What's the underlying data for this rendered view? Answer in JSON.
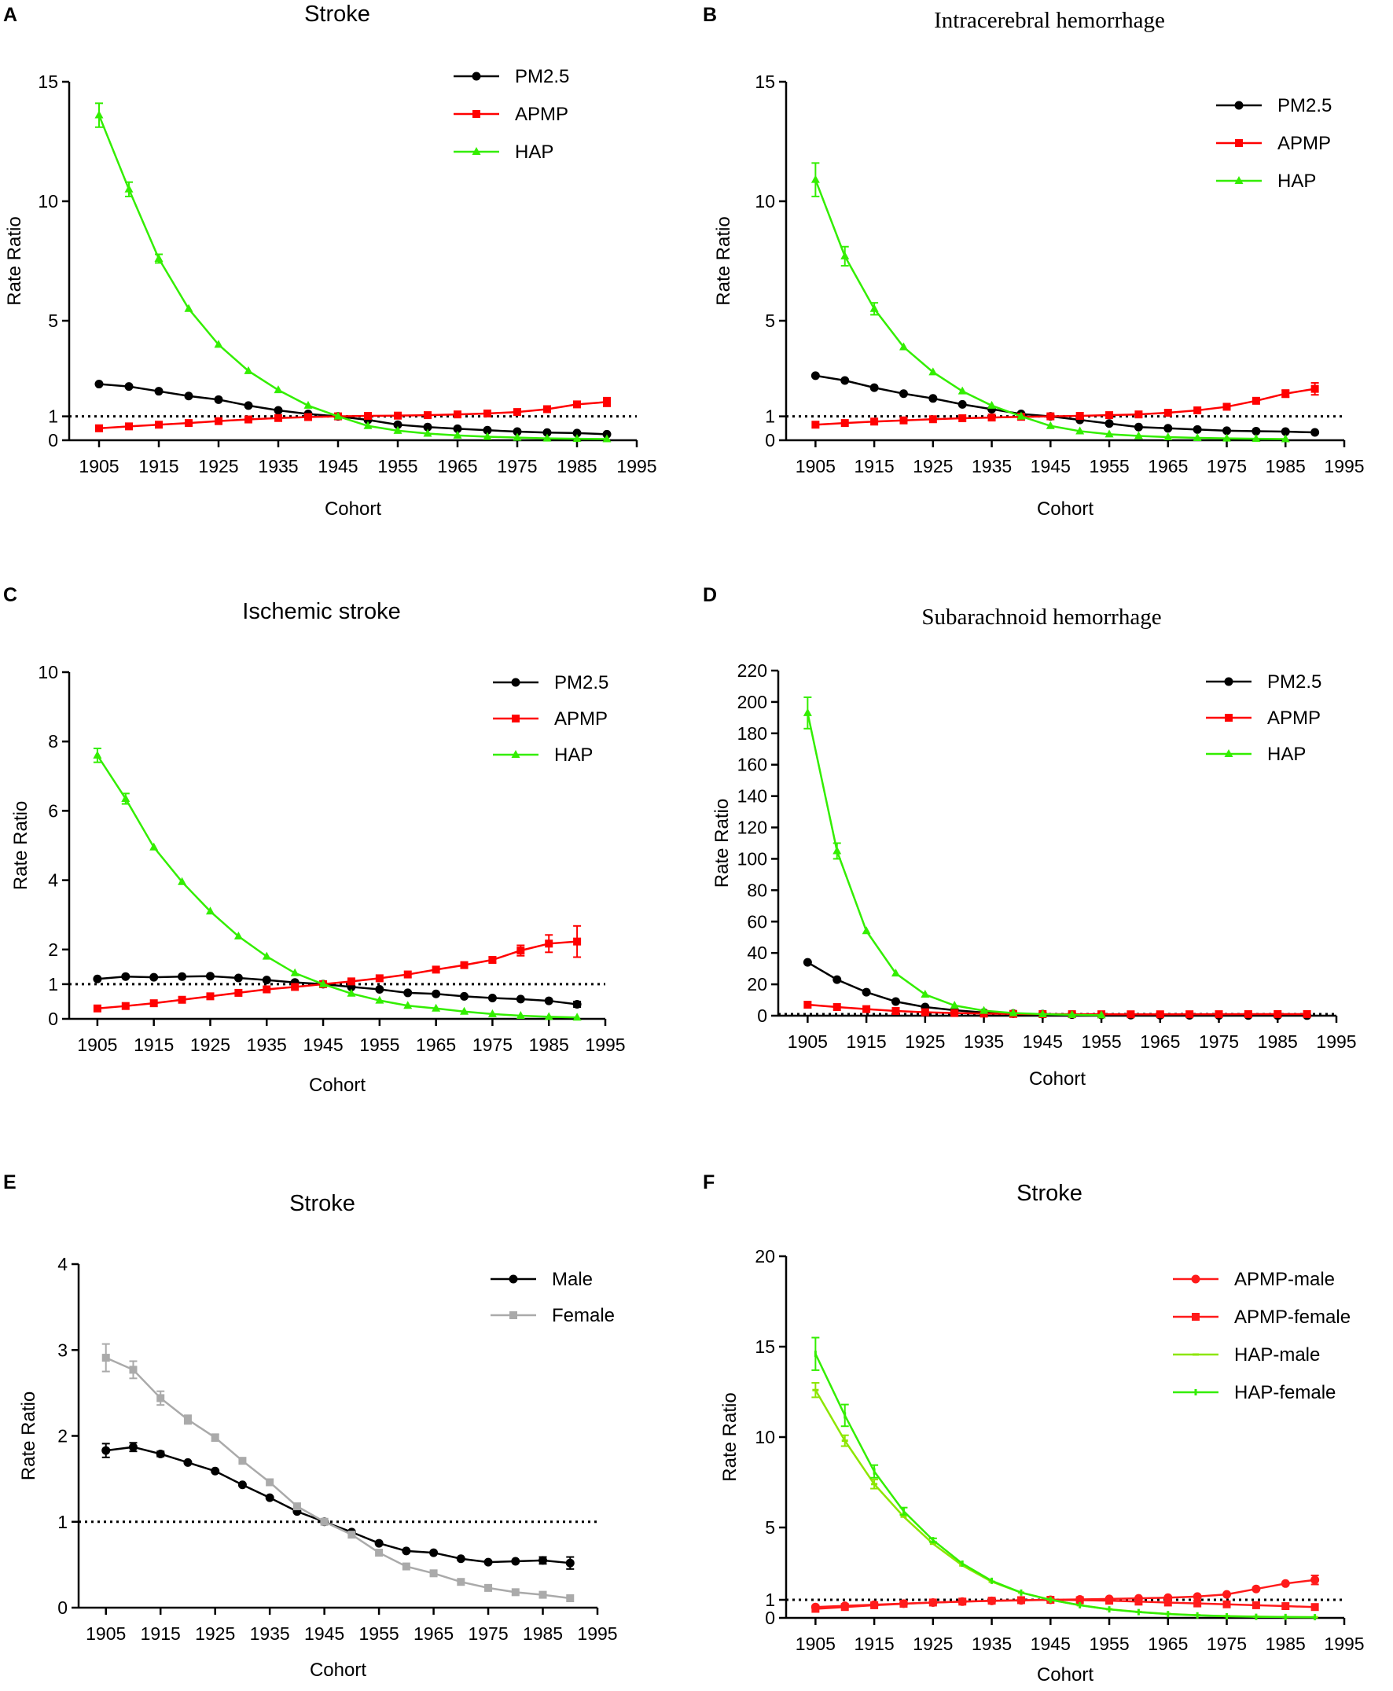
{
  "chart_data": [
    {
      "type": "line",
      "panel": "A",
      "title": "Stroke",
      "title_font": "sans",
      "xlabel": "Cohort",
      "ylabel": "Rate Ratio",
      "xlim": [
        1900,
        1995
      ],
      "ylim": [
        0,
        15
      ],
      "xticks": [
        1905,
        1915,
        1925,
        1935,
        1945,
        1955,
        1965,
        1975,
        1985,
        1995
      ],
      "yticks": [
        0,
        1,
        5,
        10,
        15
      ],
      "refline": 1,
      "x": [
        1905,
        1910,
        1915,
        1920,
        1925,
        1930,
        1935,
        1940,
        1945,
        1950,
        1955,
        1960,
        1965,
        1970,
        1975,
        1980,
        1985,
        1990
      ],
      "series": [
        {
          "name": "PM2.5",
          "color": "#000000",
          "marker": "circle",
          "values": [
            2.35,
            2.25,
            2.05,
            1.85,
            1.7,
            1.45,
            1.25,
            1.1,
            1.0,
            0.85,
            0.65,
            0.55,
            0.48,
            0.42,
            0.36,
            0.32,
            0.3,
            0.25
          ],
          "errors": [
            0,
            0,
            0,
            0,
            0,
            0,
            0,
            0,
            0,
            0,
            0,
            0,
            0,
            0,
            0,
            0,
            0,
            0
          ]
        },
        {
          "name": "APMP",
          "color": "#ff0000",
          "marker": "square",
          "values": [
            0.5,
            0.58,
            0.65,
            0.72,
            0.8,
            0.87,
            0.93,
            0.97,
            1.0,
            1.02,
            1.03,
            1.05,
            1.08,
            1.12,
            1.18,
            1.3,
            1.5,
            1.6
          ],
          "errors": [
            0,
            0,
            0,
            0,
            0,
            0,
            0,
            0,
            0,
            0,
            0,
            0,
            0,
            0,
            0,
            0,
            0.1,
            0.18
          ]
        },
        {
          "name": "HAP",
          "color": "#33ee00",
          "marker": "triangle",
          "values": [
            13.6,
            10.5,
            7.6,
            5.5,
            4.0,
            2.9,
            2.1,
            1.45,
            1.0,
            0.6,
            0.4,
            0.28,
            0.2,
            0.15,
            0.11,
            0.08,
            0.06,
            0.05
          ],
          "errors": [
            0.5,
            0.3,
            0.18,
            0,
            0,
            0,
            0,
            0,
            0,
            0,
            0,
            0,
            0,
            0,
            0,
            0,
            0,
            0
          ]
        }
      ]
    },
    {
      "type": "line",
      "panel": "B",
      "title": "Intracerebral hemorrhage",
      "title_font": "serif",
      "xlabel": "Cohort",
      "ylabel": "Rate Ratio",
      "xlim": [
        1900,
        1995
      ],
      "ylim": [
        0,
        15
      ],
      "xticks": [
        1905,
        1915,
        1925,
        1935,
        1945,
        1955,
        1965,
        1975,
        1985,
        1995
      ],
      "yticks": [
        0,
        1,
        5,
        10,
        15
      ],
      "refline": 1,
      "x": [
        1905,
        1910,
        1915,
        1920,
        1925,
        1930,
        1935,
        1940,
        1945,
        1950,
        1955,
        1960,
        1965,
        1970,
        1975,
        1980,
        1985,
        1990
      ],
      "series": [
        {
          "name": "PM2.5",
          "color": "#000000",
          "marker": "circle",
          "values": [
            2.7,
            2.5,
            2.2,
            1.95,
            1.75,
            1.5,
            1.3,
            1.1,
            1.0,
            0.85,
            0.7,
            0.55,
            0.5,
            0.45,
            0.4,
            0.38,
            0.36,
            0.33
          ],
          "errors": [
            0,
            0,
            0,
            0,
            0,
            0,
            0,
            0,
            0,
            0,
            0,
            0,
            0,
            0,
            0,
            0,
            0,
            0
          ]
        },
        {
          "name": "APMP",
          "color": "#ff0000",
          "marker": "square",
          "values": [
            0.65,
            0.72,
            0.78,
            0.83,
            0.88,
            0.92,
            0.95,
            0.98,
            1.0,
            1.02,
            1.05,
            1.08,
            1.15,
            1.25,
            1.4,
            1.65,
            1.95,
            2.15
          ],
          "errors": [
            0,
            0,
            0,
            0,
            0,
            0,
            0,
            0,
            0,
            0,
            0,
            0,
            0,
            0,
            0,
            0,
            0.15,
            0.25
          ]
        },
        {
          "name": "HAP",
          "color": "#33ee00",
          "marker": "triangle",
          "values": [
            10.9,
            7.7,
            5.5,
            3.9,
            2.85,
            2.05,
            1.45,
            1.0,
            0.6,
            0.38,
            0.25,
            0.18,
            0.13,
            0.1,
            0.08,
            0.06,
            0.05
          ],
          "errors": [
            0.7,
            0.4,
            0.25,
            0,
            0,
            0,
            0,
            0,
            0,
            0,
            0,
            0,
            0,
            0,
            0,
            0,
            0
          ],
          "x": [
            1905,
            1910,
            1915,
            1920,
            1925,
            1930,
            1935,
            1940,
            1945,
            1950,
            1955,
            1960,
            1965,
            1970,
            1975,
            1980,
            1985
          ]
        }
      ]
    },
    {
      "type": "line",
      "panel": "C",
      "title": "Ischemic stroke",
      "title_font": "sans",
      "xlabel": "Cohort",
      "ylabel": "Rate Ratio",
      "xlim": [
        1900,
        1995
      ],
      "ylim": [
        0,
        10
      ],
      "xticks": [
        1905,
        1915,
        1925,
        1935,
        1945,
        1955,
        1965,
        1975,
        1985,
        1995
      ],
      "yticks": [
        0,
        1,
        2,
        4,
        6,
        8,
        10
      ],
      "refline": 1,
      "x": [
        1905,
        1910,
        1915,
        1920,
        1925,
        1930,
        1935,
        1940,
        1945,
        1950,
        1955,
        1960,
        1965,
        1970,
        1975,
        1980,
        1985,
        1990
      ],
      "series": [
        {
          "name": "PM2.5",
          "color": "#000000",
          "marker": "circle",
          "values": [
            1.15,
            1.22,
            1.2,
            1.22,
            1.23,
            1.18,
            1.12,
            1.05,
            1.0,
            0.92,
            0.85,
            0.75,
            0.72,
            0.65,
            0.6,
            0.57,
            0.52,
            0.42
          ],
          "errors": [
            0,
            0,
            0,
            0,
            0,
            0,
            0,
            0,
            0,
            0,
            0,
            0,
            0,
            0,
            0,
            0,
            0,
            0.08
          ]
        },
        {
          "name": "APMP",
          "color": "#ff0000",
          "marker": "square",
          "values": [
            0.3,
            0.37,
            0.45,
            0.55,
            0.65,
            0.75,
            0.85,
            0.92,
            1.0,
            1.08,
            1.17,
            1.28,
            1.42,
            1.55,
            1.7,
            1.97,
            2.17,
            2.23
          ],
          "errors": [
            0,
            0,
            0,
            0,
            0,
            0,
            0,
            0,
            0,
            0,
            0,
            0,
            0,
            0.05,
            0.08,
            0.15,
            0.25,
            0.45
          ]
        },
        {
          "name": "HAP",
          "color": "#33ee00",
          "marker": "triangle",
          "values": [
            7.6,
            6.35,
            4.95,
            3.95,
            3.1,
            2.38,
            1.8,
            1.32,
            1.0,
            0.73,
            0.53,
            0.38,
            0.3,
            0.21,
            0.14,
            0.09,
            0.06,
            0.04
          ],
          "errors": [
            0.2,
            0.15,
            0,
            0,
            0,
            0,
            0,
            0,
            0,
            0,
            0,
            0,
            0,
            0,
            0,
            0,
            0,
            0
          ]
        }
      ]
    },
    {
      "type": "line",
      "panel": "D",
      "title": "Subarachnoid hemorrhage",
      "title_font": "serif",
      "xlabel": "Cohort",
      "ylabel": "Rate Ratio",
      "xlim": [
        1900,
        1995
      ],
      "ylim": [
        0,
        220
      ],
      "xticks": [
        1905,
        1915,
        1925,
        1935,
        1945,
        1955,
        1965,
        1975,
        1985,
        1995
      ],
      "yticks": [
        0,
        20,
        40,
        60,
        80,
        100,
        120,
        140,
        160,
        180,
        200,
        220
      ],
      "refline": 1,
      "x": [
        1905,
        1910,
        1915,
        1920,
        1925,
        1930,
        1935,
        1940,
        1945,
        1950,
        1955,
        1960,
        1965,
        1970,
        1975,
        1980,
        1985,
        1990
      ],
      "series": [
        {
          "name": "PM2.5",
          "color": "#000000",
          "marker": "circle",
          "values": [
            34,
            23,
            15,
            9,
            5.5,
            3.5,
            2,
            1.3,
            1.0,
            0.7,
            0.5,
            0.4,
            0.3,
            0.25,
            0.2,
            0.15,
            0.12,
            0.1
          ],
          "errors": [
            0,
            0,
            0,
            0,
            0,
            0,
            0,
            0,
            0,
            0,
            0,
            0,
            0,
            0,
            0,
            0,
            0,
            0
          ]
        },
        {
          "name": "APMP",
          "color": "#ff0000",
          "marker": "square",
          "values": [
            7,
            5.5,
            4.2,
            3,
            2.2,
            1.7,
            1.35,
            1.15,
            1.0,
            0.95,
            0.92,
            0.9,
            0.9,
            0.92,
            0.95,
            0.98,
            1.0,
            1.0
          ],
          "errors": [
            0,
            0,
            0,
            0,
            0,
            0,
            0,
            0,
            0,
            0,
            0,
            0,
            0,
            0,
            0,
            0,
            0,
            0
          ]
        },
        {
          "name": "HAP",
          "color": "#33ee00",
          "marker": "triangle",
          "values": [
            193,
            105,
            54,
            27,
            13.5,
            6.5,
            3.2,
            1.7,
            1.0,
            0.55,
            0.3
          ],
          "errors": [
            10,
            5,
            0,
            0,
            0,
            0,
            0,
            0,
            0,
            0,
            0
          ],
          "x": [
            1905,
            1910,
            1915,
            1920,
            1925,
            1930,
            1935,
            1940,
            1945,
            1950,
            1955
          ]
        }
      ]
    },
    {
      "type": "line",
      "panel": "E",
      "title": "Stroke",
      "title_font": "sans",
      "xlabel": "Cohort",
      "ylabel": "Rate Ratio",
      "xlim": [
        1900,
        1995
      ],
      "ylim": [
        0,
        4
      ],
      "xticks": [
        1905,
        1915,
        1925,
        1935,
        1945,
        1955,
        1965,
        1975,
        1985,
        1995
      ],
      "yticks": [
        0,
        1,
        2,
        3,
        4
      ],
      "refline": 1,
      "x": [
        1905,
        1910,
        1915,
        1920,
        1925,
        1930,
        1935,
        1940,
        1945,
        1950,
        1955,
        1960,
        1965,
        1970,
        1975,
        1980,
        1985,
        1990
      ],
      "series": [
        {
          "name": "Male",
          "color": "#000000",
          "marker": "circle",
          "values": [
            1.83,
            1.87,
            1.79,
            1.69,
            1.59,
            1.43,
            1.28,
            1.12,
            1.0,
            0.88,
            0.75,
            0.66,
            0.64,
            0.57,
            0.53,
            0.54,
            0.55,
            0.52
          ],
          "errors": [
            0.08,
            0.05,
            0.03,
            0,
            0,
            0,
            0,
            0,
            0,
            0,
            0,
            0,
            0,
            0,
            0,
            0,
            0.04,
            0.07
          ]
        },
        {
          "name": "Female",
          "color": "#aaaaaa",
          "marker": "square",
          "values": [
            2.91,
            2.77,
            2.44,
            2.19,
            1.98,
            1.71,
            1.46,
            1.18,
            1.0,
            0.85,
            0.64,
            0.48,
            0.4,
            0.3,
            0.23,
            0.18,
            0.15,
            0.11
          ],
          "errors": [
            0.16,
            0.1,
            0.08,
            0.05,
            0.04,
            0,
            0,
            0,
            0,
            0,
            0,
            0,
            0,
            0,
            0,
            0,
            0,
            0
          ]
        }
      ]
    },
    {
      "type": "line",
      "panel": "F",
      "title": "Stroke",
      "title_font": "sans",
      "xlabel": "Cohort",
      "ylabel": "Rate Ratio",
      "xlim": [
        1900,
        1995
      ],
      "ylim": [
        0,
        20
      ],
      "xticks": [
        1905,
        1915,
        1925,
        1935,
        1945,
        1955,
        1965,
        1975,
        1985,
        1995
      ],
      "yticks": [
        0,
        1,
        5,
        10,
        15,
        20
      ],
      "refline": 1,
      "x": [
        1905,
        1910,
        1915,
        1920,
        1925,
        1930,
        1935,
        1940,
        1945,
        1950,
        1955,
        1960,
        1965,
        1970,
        1975,
        1980,
        1985,
        1990
      ],
      "series": [
        {
          "name": "APMP-male",
          "color": "#ff1a1a",
          "marker": "circle",
          "values": [
            0.6,
            0.67,
            0.73,
            0.79,
            0.85,
            0.9,
            0.94,
            0.97,
            1.0,
            1.02,
            1.05,
            1.08,
            1.12,
            1.18,
            1.3,
            1.6,
            1.9,
            2.1
          ],
          "errors": [
            0,
            0,
            0,
            0,
            0,
            0,
            0,
            0,
            0,
            0,
            0,
            0,
            0,
            0,
            0,
            0,
            0.05,
            0.25
          ]
        },
        {
          "name": "APMP-female",
          "color": "#ff1a1a",
          "marker": "square",
          "values": [
            0.5,
            0.6,
            0.7,
            0.78,
            0.85,
            0.9,
            0.95,
            0.98,
            1.0,
            0.98,
            0.95,
            0.9,
            0.85,
            0.8,
            0.75,
            0.7,
            0.65,
            0.6
          ],
          "errors": [
            0,
            0,
            0,
            0,
            0,
            0,
            0,
            0,
            0,
            0,
            0,
            0,
            0,
            0,
            0,
            0,
            0,
            0
          ]
        },
        {
          "name": "HAP-male",
          "color": "#8ce600",
          "marker": "dash",
          "values": [
            12.6,
            9.8,
            7.4,
            5.6,
            4.1,
            2.9,
            2.0,
            1.4,
            1.0,
            0.7,
            0.48,
            0.33,
            0.22,
            0.15,
            0.1,
            0.07,
            0.05,
            0.04
          ],
          "errors": [
            0.4,
            0.3,
            0.25,
            0,
            0,
            0,
            0,
            0,
            0,
            0,
            0,
            0,
            0,
            0,
            0,
            0,
            0,
            0
          ]
        },
        {
          "name": "HAP-female",
          "color": "#33ee00",
          "marker": "tick",
          "values": [
            14.6,
            11.2,
            8.1,
            5.9,
            4.3,
            3.0,
            2.05,
            1.4,
            1.0,
            0.7,
            0.47,
            0.32,
            0.21,
            0.14,
            0.09,
            0.06,
            0.05,
            0.04
          ],
          "errors": [
            0.9,
            0.6,
            0.35,
            0.2,
            0.1,
            0,
            0,
            0,
            0,
            0,
            0,
            0,
            0,
            0,
            0,
            0,
            0,
            0
          ]
        }
      ]
    }
  ]
}
